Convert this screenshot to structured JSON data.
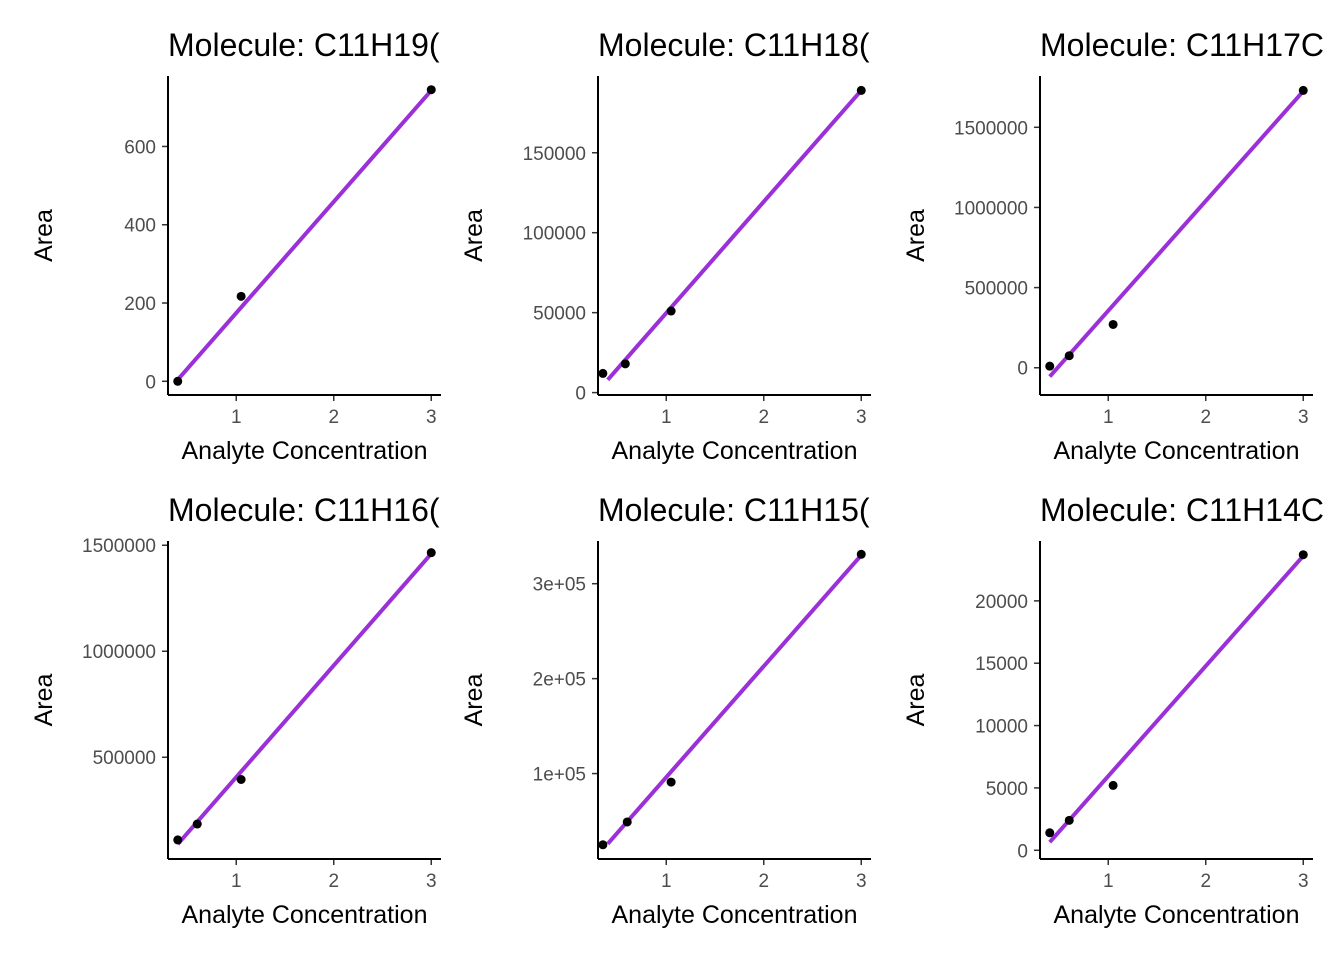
{
  "chart_data": [
    {
      "type": "scatter",
      "title": "Molecule: C11H19(",
      "xlabel": "Analyte Concentration",
      "ylabel": "Area",
      "xlim": [
        0.3,
        3.1
      ],
      "ylim": [
        -35,
        780
      ],
      "xticks": [
        1,
        2,
        3
      ],
      "yticks": [
        0,
        200,
        400,
        600
      ],
      "ytick_labels": [
        "0",
        "200",
        "400",
        "600"
      ],
      "points": [
        [
          0.4,
          0
        ],
        [
          1.05,
          217
        ],
        [
          3.0,
          745
        ]
      ],
      "fit": {
        "x": [
          0.4,
          3.0
        ],
        "y": [
          4,
          743
        ],
        "color": "#9B30D9"
      },
      "grid": false,
      "legend": "none"
    },
    {
      "type": "scatter",
      "title": "Molecule: C11H18(",
      "xlabel": "Analyte Concentration",
      "ylabel": "Area",
      "xlim": [
        0.3,
        3.1
      ],
      "ylim": [
        -1500,
        198000
      ],
      "xticks": [
        1,
        2,
        3
      ],
      "yticks": [
        0,
        50000,
        100000,
        150000
      ],
      "ytick_labels": [
        "0",
        "50000",
        "100000",
        "150000"
      ],
      "points": [
        [
          0.35,
          12000
        ],
        [
          0.58,
          18000
        ],
        [
          1.05,
          51000
        ],
        [
          3.0,
          189000
        ]
      ],
      "fit": {
        "x": [
          0.4,
          3.0
        ],
        "y": [
          8000,
          189000
        ],
        "color": "#9B30D9"
      },
      "grid": false,
      "legend": "none"
    },
    {
      "type": "scatter",
      "title": "Molecule: C11H17C",
      "xlabel": "Analyte Concentration",
      "ylabel": "Area",
      "xlim": [
        0.3,
        3.1
      ],
      "ylim": [
        -170000,
        1820000
      ],
      "xticks": [
        1,
        2,
        3
      ],
      "yticks": [
        0,
        500000,
        1000000,
        1500000
      ],
      "ytick_labels": [
        "0",
        "500000",
        "1000000",
        "1500000"
      ],
      "points": [
        [
          0.4,
          10000
        ],
        [
          0.6,
          75000
        ],
        [
          1.05,
          270000
        ],
        [
          3.0,
          1730000
        ]
      ],
      "fit": {
        "x": [
          0.4,
          3.0
        ],
        "y": [
          -55000,
          1725000
        ],
        "color": "#9B30D9"
      },
      "grid": false,
      "legend": "none"
    },
    {
      "type": "scatter",
      "title": "Molecule: C11H16(",
      "xlabel": "Analyte Concentration",
      "ylabel": "Area",
      "xlim": [
        0.3,
        3.1
      ],
      "ylim": [
        20000,
        1520000
      ],
      "xticks": [
        1,
        2,
        3
      ],
      "yticks": [
        500000,
        1000000,
        1500000
      ],
      "ytick_labels": [
        "500000",
        "1000000",
        "1500000"
      ],
      "points": [
        [
          0.4,
          110000
        ],
        [
          0.6,
          185000
        ],
        [
          1.05,
          395000
        ],
        [
          3.0,
          1465000
        ]
      ],
      "fit": {
        "x": [
          0.4,
          3.0
        ],
        "y": [
          90000,
          1460000
        ],
        "color": "#9B30D9"
      },
      "grid": false,
      "legend": "none"
    },
    {
      "type": "scatter",
      "title": "Molecule: C11H15(",
      "xlabel": "Analyte Concentration",
      "ylabel": "Area",
      "xlim": [
        0.3,
        3.1
      ],
      "ylim": [
        10000,
        345000
      ],
      "xticks": [
        1,
        2,
        3
      ],
      "yticks": [
        100000,
        200000,
        300000
      ],
      "ytick_labels": [
        "1e+05",
        "2e+05",
        "3e+05"
      ],
      "points": [
        [
          0.35,
          25000
        ],
        [
          0.6,
          49000
        ],
        [
          1.05,
          91000
        ],
        [
          3.0,
          331000
        ]
      ],
      "fit": {
        "x": [
          0.4,
          3.0
        ],
        "y": [
          26000,
          330000
        ],
        "color": "#9B30D9"
      },
      "grid": false,
      "legend": "none"
    },
    {
      "type": "scatter",
      "title": "Molecule: C11H14C",
      "xlabel": "Analyte Concentration",
      "ylabel": "Area",
      "xlim": [
        0.3,
        3.1
      ],
      "ylim": [
        -700,
        24800
      ],
      "xticks": [
        1,
        2,
        3
      ],
      "yticks": [
        0,
        5000,
        10000,
        15000,
        20000
      ],
      "ytick_labels": [
        "0",
        "5000",
        "10000",
        "15000",
        "20000"
      ],
      "points": [
        [
          0.4,
          1400
        ],
        [
          0.6,
          2400
        ],
        [
          1.05,
          5200
        ],
        [
          3.0,
          23700
        ]
      ],
      "fit": {
        "x": [
          0.4,
          3.0
        ],
        "y": [
          650,
          23600
        ],
        "color": "#9B30D9"
      },
      "grid": false,
      "legend": "none"
    }
  ]
}
